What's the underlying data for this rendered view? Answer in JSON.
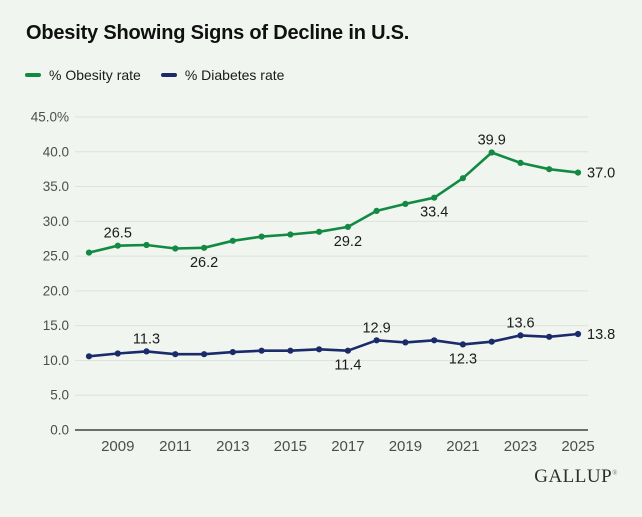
{
  "page": {
    "background": "#f0f5ef"
  },
  "header": {
    "title": "Obesity Showing Signs of Decline in U.S."
  },
  "legend": [
    {
      "label": "% Obesity rate",
      "color": "#128a43"
    },
    {
      "label": "% Diabetes rate",
      "color": "#1b2b6a"
    }
  ],
  "footer": {
    "brand": "GALLUP",
    "trademark": "®"
  },
  "chart_data": {
    "type": "line",
    "title": "Obesity Showing Signs of Decline in U.S.",
    "x": [
      2008,
      2009,
      2010,
      2011,
      2012,
      2013,
      2014,
      2015,
      2016,
      2017,
      2018,
      2019,
      2020,
      2021,
      2022,
      2023,
      2024,
      2025
    ],
    "xticks": [
      2009,
      2011,
      2013,
      2015,
      2017,
      2019,
      2021,
      2023,
      2025
    ],
    "ylim": [
      0,
      45
    ],
    "grid": true,
    "legend_position": "top-left",
    "yticks": [
      {
        "v": 0,
        "label": "0.0"
      },
      {
        "v": 5,
        "label": "5.0"
      },
      {
        "v": 10,
        "label": "10.0"
      },
      {
        "v": 15,
        "label": "15.0"
      },
      {
        "v": 20,
        "label": "20.0"
      },
      {
        "v": 25,
        "label": "25.0"
      },
      {
        "v": 30,
        "label": "30.0"
      },
      {
        "v": 35,
        "label": "35.0"
      },
      {
        "v": 40,
        "label": "40.0"
      },
      {
        "v": 45,
        "label": "45.0%"
      }
    ],
    "series": [
      {
        "id": "obesity",
        "name": "% Obesity rate",
        "color": "#128a43",
        "values": [
          25.5,
          26.5,
          26.6,
          26.1,
          26.2,
          27.2,
          27.8,
          28.1,
          28.5,
          29.2,
          31.5,
          32.5,
          33.4,
          36.2,
          39.9,
          38.4,
          37.5,
          37.0
        ],
        "point_labels": [
          {
            "x": 2009,
            "text": "26.5",
            "pos": "above"
          },
          {
            "x": 2012,
            "text": "26.2",
            "pos": "below"
          },
          {
            "x": 2017,
            "text": "29.2",
            "pos": "below"
          },
          {
            "x": 2020,
            "text": "33.4",
            "pos": "below"
          },
          {
            "x": 2022,
            "text": "39.9",
            "pos": "above"
          },
          {
            "x": 2025,
            "text": "37.0",
            "pos": "right"
          }
        ]
      },
      {
        "id": "diabetes",
        "name": "% Diabetes rate",
        "color": "#1b2b6a",
        "values": [
          10.6,
          11.0,
          11.3,
          10.9,
          10.9,
          11.2,
          11.4,
          11.4,
          11.6,
          11.4,
          12.9,
          12.6,
          12.9,
          12.3,
          12.7,
          13.6,
          13.4,
          13.8
        ],
        "point_labels": [
          {
            "x": 2010,
            "text": "11.3",
            "pos": "above"
          },
          {
            "x": 2017,
            "text": "11.4",
            "pos": "below"
          },
          {
            "x": 2018,
            "text": "12.9",
            "pos": "above"
          },
          {
            "x": 2021,
            "text": "12.3",
            "pos": "below"
          },
          {
            "x": 2023,
            "text": "13.6",
            "pos": "above"
          },
          {
            "x": 2025,
            "text": "13.8",
            "pos": "right"
          }
        ]
      }
    ]
  }
}
